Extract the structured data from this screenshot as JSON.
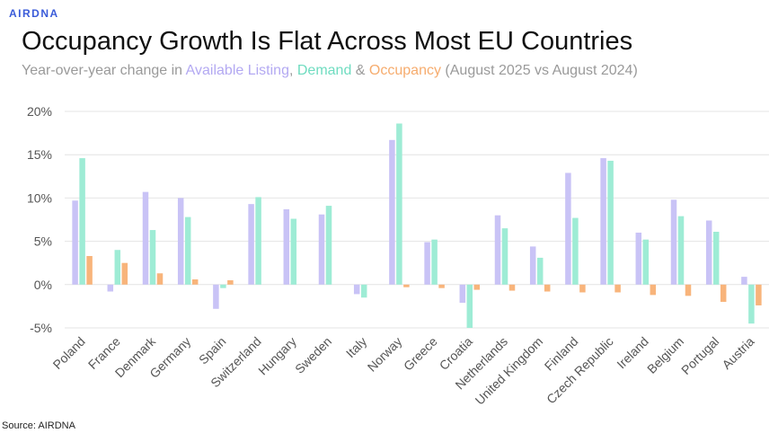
{
  "brand": "AIRDNA",
  "title": "Occupancy Growth Is Flat Across Most EU Countries",
  "subtitle": {
    "prefix": "Year-over-year change in ",
    "listing": "Available Listing",
    "sep1": ", ",
    "demand": "Demand",
    "sep2": " & ",
    "occupancy": "Occupancy",
    "suffix": " (August 2025 vs August 2024)"
  },
  "source": "Source: AIRDNA",
  "colors": {
    "listing": "#c9c3f6",
    "demand": "#9eecd5",
    "occupancy": "#f8b47b",
    "grid": "#e4e4e4"
  },
  "chart_data": {
    "type": "bar",
    "categories": [
      "Poland",
      "France",
      "Denmark",
      "Germany",
      "Spain",
      "Switzerland",
      "Hungary",
      "Sweden",
      "Italy",
      "Norway",
      "Greece",
      "Croatia",
      "Netherlands",
      "United Kingdom",
      "Finland",
      "Czech Republic",
      "Ireland",
      "Belgium",
      "Portugal",
      "Austria"
    ],
    "series": [
      {
        "name": "Available Listing",
        "values": [
          9.7,
          -0.8,
          10.7,
          10.0,
          -2.8,
          9.3,
          8.7,
          8.1,
          -1.1,
          16.7,
          4.9,
          -2.1,
          8.0,
          4.4,
          12.9,
          14.6,
          6.0,
          9.8,
          7.4,
          0.9
        ]
      },
      {
        "name": "Demand",
        "values": [
          14.6,
          4.0,
          6.3,
          7.8,
          -0.4,
          10.1,
          7.6,
          9.1,
          -1.5,
          18.6,
          5.2,
          -5.0,
          6.5,
          3.1,
          7.7,
          14.3,
          5.2,
          7.9,
          6.1,
          -4.5
        ]
      },
      {
        "name": "Occupancy",
        "values": [
          3.3,
          2.5,
          1.3,
          0.6,
          0.5,
          0.0,
          0.0,
          0.0,
          0.0,
          -0.3,
          -0.4,
          -0.6,
          -0.7,
          -0.8,
          -0.9,
          -0.9,
          -1.2,
          -1.3,
          -2.0,
          -2.4
        ]
      }
    ],
    "ylim": [
      -5,
      20
    ],
    "yticks": [
      -5,
      0,
      5,
      10,
      15,
      20
    ],
    "ytick_labels": [
      "-5%",
      "0%",
      "5%",
      "10%",
      "15%",
      "20%"
    ],
    "grid": true,
    "legend": "in subtitle"
  }
}
